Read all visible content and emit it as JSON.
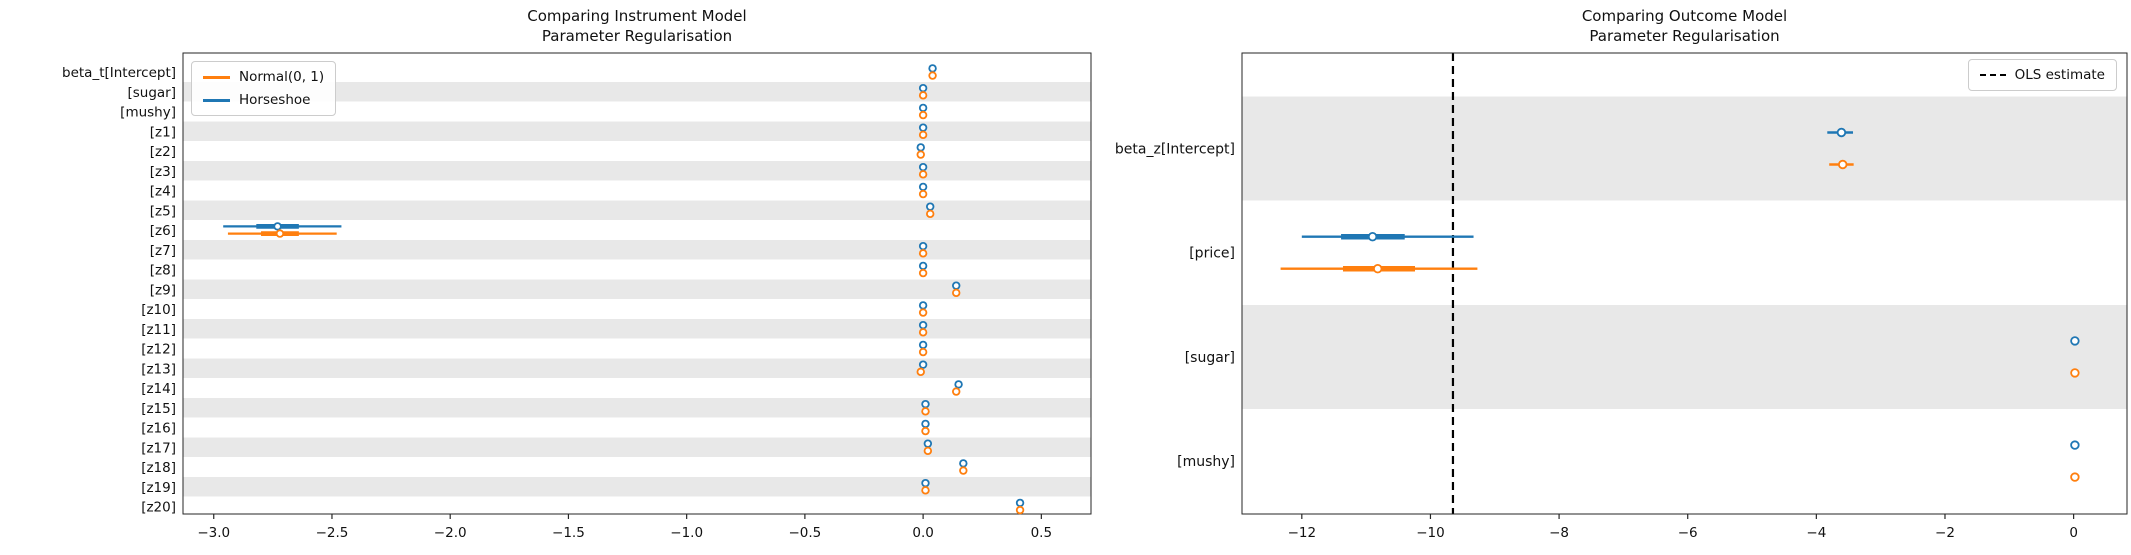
{
  "figure": {
    "background": "#ffffff",
    "colors": {
      "normal": "#ff7f0e",
      "horseshoe": "#1f77b4",
      "band": "#e8e8e8",
      "spine": "#262626",
      "text": "#111111",
      "ols_line": "#000000",
      "legend_border": "#cccccc"
    }
  },
  "chart_data": [
    {
      "type": "forest",
      "title_line1": "Comparing Instrument Model",
      "title_line2": "Parameter Regularisation",
      "legend_position": "upper left",
      "legend": [
        {
          "label": "Normal(0, 1)",
          "color": "#ff7f0e"
        },
        {
          "label": "Horseshoe",
          "color": "#1f77b4"
        }
      ],
      "xlim": [
        -3.13,
        0.71
      ],
      "xticks": [
        -3.0,
        -2.5,
        -2.0,
        -1.5,
        -1.0,
        -0.5,
        0.0,
        0.5
      ],
      "xtick_labels": [
        "−3.0",
        "−2.5",
        "−2.0",
        "−1.5",
        "−1.0",
        "−0.5",
        "0.0",
        "0.5"
      ],
      "grid": false,
      "rows": [
        {
          "label": "beta_t[Intercept]",
          "horseshoe": {
            "median": 0.04
          },
          "normal": {
            "median": 0.04
          }
        },
        {
          "label": "[sugar]",
          "horseshoe": {
            "median": 0.0
          },
          "normal": {
            "median": 0.0
          }
        },
        {
          "label": "[mushy]",
          "horseshoe": {
            "median": 0.0
          },
          "normal": {
            "median": 0.0
          }
        },
        {
          "label": "[z1]",
          "horseshoe": {
            "median": 0.0
          },
          "normal": {
            "median": 0.0
          }
        },
        {
          "label": "[z2]",
          "horseshoe": {
            "median": -0.01
          },
          "normal": {
            "median": -0.01
          }
        },
        {
          "label": "[z3]",
          "horseshoe": {
            "median": 0.0
          },
          "normal": {
            "median": 0.0
          }
        },
        {
          "label": "[z4]",
          "horseshoe": {
            "median": 0.0
          },
          "normal": {
            "median": 0.0
          }
        },
        {
          "label": "[z5]",
          "horseshoe": {
            "median": 0.03
          },
          "normal": {
            "median": 0.03
          }
        },
        {
          "label": "[z6]",
          "horseshoe": {
            "median": -2.73,
            "hdi": [
              -2.96,
              -2.46
            ],
            "iqr": [
              -2.82,
              -2.64
            ]
          },
          "normal": {
            "median": -2.72,
            "hdi": [
              -2.94,
              -2.48
            ],
            "iqr": [
              -2.8,
              -2.64
            ]
          }
        },
        {
          "label": "[z7]",
          "horseshoe": {
            "median": 0.0
          },
          "normal": {
            "median": 0.0
          }
        },
        {
          "label": "[z8]",
          "horseshoe": {
            "median": 0.0
          },
          "normal": {
            "median": 0.0
          }
        },
        {
          "label": "[z9]",
          "horseshoe": {
            "median": 0.14
          },
          "normal": {
            "median": 0.14
          }
        },
        {
          "label": "[z10]",
          "horseshoe": {
            "median": 0.0
          },
          "normal": {
            "median": 0.0
          }
        },
        {
          "label": "[z11]",
          "horseshoe": {
            "median": 0.0
          },
          "normal": {
            "median": 0.0
          }
        },
        {
          "label": "[z12]",
          "horseshoe": {
            "median": 0.0
          },
          "normal": {
            "median": 0.0
          }
        },
        {
          "label": "[z13]",
          "horseshoe": {
            "median": 0.0
          },
          "normal": {
            "median": -0.01
          }
        },
        {
          "label": "[z14]",
          "horseshoe": {
            "median": 0.15
          },
          "normal": {
            "median": 0.14
          }
        },
        {
          "label": "[z15]",
          "horseshoe": {
            "median": 0.01
          },
          "normal": {
            "median": 0.01
          }
        },
        {
          "label": "[z16]",
          "horseshoe": {
            "median": 0.01
          },
          "normal": {
            "median": 0.01
          }
        },
        {
          "label": "[z17]",
          "horseshoe": {
            "median": 0.02
          },
          "normal": {
            "median": 0.02
          }
        },
        {
          "label": "[z18]",
          "horseshoe": {
            "median": 0.17
          },
          "normal": {
            "median": 0.17
          }
        },
        {
          "label": "[z19]",
          "horseshoe": {
            "median": 0.01
          },
          "normal": {
            "median": 0.01
          }
        },
        {
          "label": "[z20]",
          "horseshoe": {
            "median": 0.41
          },
          "normal": {
            "median": 0.41
          }
        }
      ]
    },
    {
      "type": "forest",
      "title_line1": "Comparing Outcome Model",
      "title_line2": "Parameter Regularisation",
      "legend_position": "upper right",
      "legend": [
        {
          "label": "OLS estimate",
          "color": "#000000",
          "style": "dashed"
        }
      ],
      "vline": {
        "x": -9.65
      },
      "xlim": [
        -12.93,
        0.83
      ],
      "xticks": [
        -12,
        -10,
        -8,
        -6,
        -4,
        -2,
        0
      ],
      "xtick_labels": [
        "−12",
        "−10",
        "−8",
        "−6",
        "−4",
        "−2",
        "0"
      ],
      "grid": false,
      "rows": [
        {
          "label": "beta_z[Intercept]",
          "horseshoe": {
            "median": -3.61,
            "hdi": [
              -3.83,
              -3.43
            ]
          },
          "normal": {
            "median": -3.59,
            "hdi": [
              -3.8,
              -3.42
            ]
          }
        },
        {
          "label": "[price]",
          "horseshoe": {
            "median": -10.9,
            "hdi": [
              -12.0,
              -9.33
            ],
            "iqr": [
              -11.39,
              -10.4
            ]
          },
          "normal": {
            "median": -10.82,
            "hdi": [
              -12.33,
              -9.27
            ],
            "iqr": [
              -11.36,
              -10.24
            ]
          }
        },
        {
          "label": "[sugar]",
          "horseshoe": {
            "median": 0.02
          },
          "normal": {
            "median": 0.02
          }
        },
        {
          "label": "[mushy]",
          "horseshoe": {
            "median": 0.02,
            "hdi": [
              -0.04,
              0.08
            ]
          },
          "normal": {
            "median": 0.02,
            "hdi": [
              -0.04,
              0.08
            ]
          }
        }
      ]
    }
  ]
}
